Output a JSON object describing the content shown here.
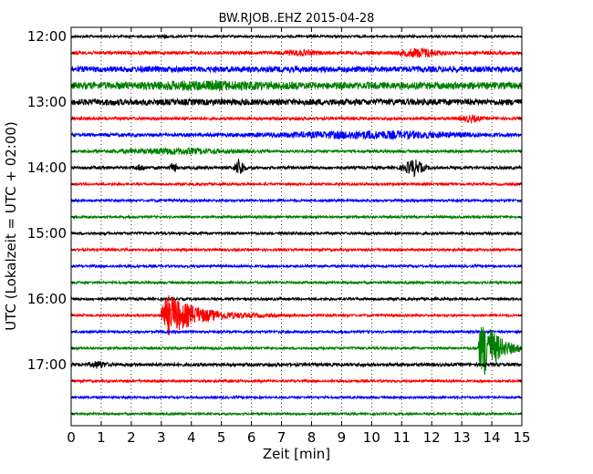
{
  "chart_data": {
    "type": "line",
    "title": "BW.RJOB..EHZ 2015-04-28",
    "xlabel": "Zeit  [min]",
    "ylabel": "UTC (Lokalzeit = UTC + 02:00)",
    "xlim": [
      0,
      15
    ],
    "x_ticks": [
      "0",
      "1",
      "2",
      "3",
      "4",
      "5",
      "6",
      "7",
      "8",
      "9",
      "10",
      "11",
      "12",
      "13",
      "14",
      "15"
    ],
    "y_ticks": [
      "12:00",
      "13:00",
      "14:00",
      "15:00",
      "16:00",
      "17:00"
    ],
    "grid": true,
    "trace_colors": [
      "#000000",
      "#ff0000",
      "#0000ff",
      "#008000"
    ],
    "traces": [
      {
        "start": "12:00",
        "color": "#000000",
        "base": 1.2,
        "bursts": [
          {
            "t": 3.1,
            "a": 1.5,
            "d": 0.3
          }
        ]
      },
      {
        "start": "12:15",
        "color": "#ff0000",
        "base": 1.8,
        "bursts": [
          {
            "t": 7.6,
            "a": 2.0,
            "d": 1.0
          },
          {
            "t": 11.6,
            "a": 4.0,
            "d": 1.2
          }
        ]
      },
      {
        "start": "12:30",
        "color": "#0000ff",
        "base": 3.2,
        "bursts": []
      },
      {
        "start": "12:45",
        "color": "#008000",
        "base": 3.8,
        "bursts": [
          {
            "t": 4.5,
            "a": 2.0,
            "d": 4.0
          }
        ]
      },
      {
        "start": "13:00",
        "color": "#000000",
        "base": 3.4,
        "bursts": []
      },
      {
        "start": "13:15",
        "color": "#ff0000",
        "base": 1.6,
        "bursts": [
          {
            "t": 13.3,
            "a": 3.0,
            "d": 0.6
          }
        ]
      },
      {
        "start": "13:30",
        "color": "#0000ff",
        "base": 1.8,
        "bursts": [
          {
            "t": 10.0,
            "a": 3.2,
            "d": 6.0
          }
        ]
      },
      {
        "start": "13:45",
        "color": "#008000",
        "base": 1.5,
        "bursts": [
          {
            "t": 3.5,
            "a": 2.5,
            "d": 3.5
          }
        ]
      },
      {
        "start": "14:00",
        "color": "#000000",
        "base": 1.6,
        "bursts": [
          {
            "t": 2.3,
            "a": 2.5,
            "d": 0.3
          },
          {
            "t": 3.4,
            "a": 5.0,
            "d": 0.2
          },
          {
            "t": 5.6,
            "a": 9.0,
            "d": 0.3
          },
          {
            "t": 11.4,
            "a": 8.0,
            "d": 0.6
          }
        ]
      },
      {
        "start": "14:15",
        "color": "#ff0000",
        "base": 1.3,
        "bursts": []
      },
      {
        "start": "14:30",
        "color": "#0000ff",
        "base": 1.3,
        "bursts": []
      },
      {
        "start": "14:45",
        "color": "#008000",
        "base": 1.3,
        "bursts": []
      },
      {
        "start": "15:00",
        "color": "#000000",
        "base": 1.4,
        "bursts": []
      },
      {
        "start": "15:15",
        "color": "#ff0000",
        "base": 1.3,
        "bursts": []
      },
      {
        "start": "15:30",
        "color": "#0000ff",
        "base": 1.3,
        "bursts": []
      },
      {
        "start": "15:45",
        "color": "#008000",
        "base": 1.3,
        "bursts": []
      },
      {
        "start": "16:00",
        "color": "#000000",
        "base": 1.4,
        "bursts": []
      },
      {
        "start": "16:15",
        "color": "#ff0000",
        "base": 1.2,
        "bursts": [
          {
            "t": 3.0,
            "a": 22.0,
            "d": 2.2,
            "onset": true
          }
        ]
      },
      {
        "start": "16:30",
        "color": "#0000ff",
        "base": 1.3,
        "bursts": []
      },
      {
        "start": "16:45",
        "color": "#008000",
        "base": 1.3,
        "bursts": [
          {
            "t": 13.55,
            "a": 32.0,
            "d": 1.0,
            "onset": true
          }
        ]
      },
      {
        "start": "17:00",
        "color": "#000000",
        "base": 1.8,
        "bursts": [
          {
            "t": 0.9,
            "a": 3.0,
            "d": 0.5
          }
        ]
      },
      {
        "start": "17:15",
        "color": "#ff0000",
        "base": 1.3,
        "bursts": []
      },
      {
        "start": "17:30",
        "color": "#0000ff",
        "base": 1.2,
        "bursts": []
      },
      {
        "start": "17:45",
        "color": "#008000",
        "base": 1.2,
        "bursts": []
      }
    ]
  }
}
